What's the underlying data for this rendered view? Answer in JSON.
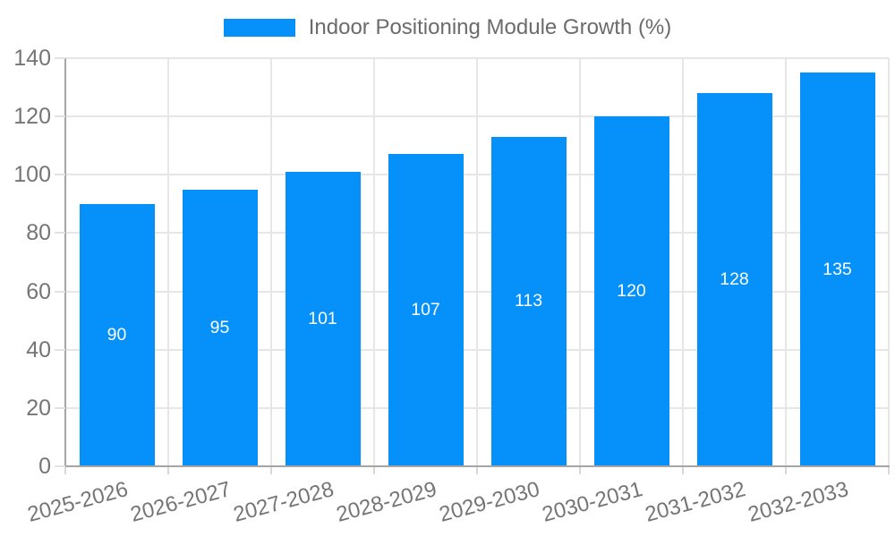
{
  "legend": {
    "label": "Indoor Positioning Module Growth (%)"
  },
  "chart_data": {
    "type": "bar",
    "title": "Indoor Positioning Module Growth (%)",
    "categories": [
      "2025-2026",
      "2026-2027",
      "2027-2028",
      "2028-2029",
      "2029-2030",
      "2030-2031",
      "2031-2032",
      "2032-2033"
    ],
    "values": [
      90,
      95,
      101,
      107,
      113,
      120,
      128,
      135
    ],
    "value_labels": [
      "90",
      "95",
      "101",
      "107",
      "113",
      "120",
      "128",
      "135"
    ],
    "xlabel": "",
    "ylabel": "",
    "ylim": [
      0,
      140
    ],
    "yticks": [
      0,
      20,
      40,
      60,
      80,
      100,
      120,
      140
    ],
    "grid": true,
    "legend_position": "top-center",
    "value_label_position": "center-of-bar"
  },
  "colors": {
    "bar": "#0691fa",
    "value_label_text": "#ffffff",
    "legend_text": "#6b6b6b",
    "tick_text": "#757575",
    "gridline": "#e6e6e6",
    "axis_line": "#a5a5a5",
    "background": "#ffffff"
  }
}
